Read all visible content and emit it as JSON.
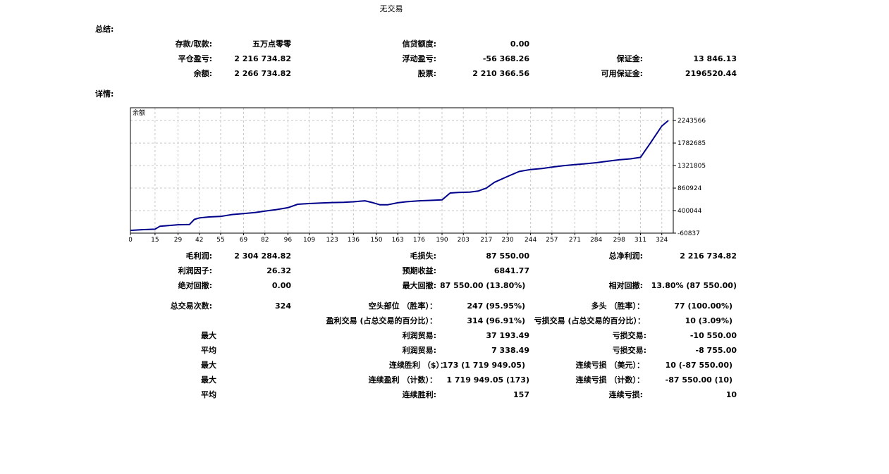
{
  "report": {
    "title": "无交易",
    "summary_label": "总结:",
    "details_label": "详情:"
  },
  "summary": {
    "deposit_label": "存款/取款:",
    "deposit_value": "五万点零零",
    "credit_label": "信贷额度:",
    "credit_value": "0.00",
    "closed_pl_label": "平仓盈亏:",
    "closed_pl_value": "2 216 734.82",
    "floating_pl_label": "浮动盈亏:",
    "floating_pl_value": "-56 368.26",
    "margin_label": "保证金:",
    "margin_value": "13 846.13",
    "balance_label": "余额:",
    "balance_value": "2 266 734.82",
    "equity_label": "股票:",
    "equity_value": "2 210 366.56",
    "free_margin_label": "可用保证金:",
    "free_margin_value": "2196520.44"
  },
  "chart_data": {
    "type": "line",
    "series": [
      {
        "name": "余额",
        "x": [
          0,
          7,
          15,
          18,
          29,
          36,
          39,
          42,
          48,
          55,
          62,
          69,
          76,
          82,
          89,
          96,
          102,
          109,
          116,
          123,
          130,
          136,
          143,
          148,
          152,
          157,
          163,
          168,
          176,
          183,
          190,
          195,
          200,
          207,
          212,
          217,
          222,
          230,
          237,
          244,
          251,
          257,
          264,
          271,
          278,
          284,
          291,
          298,
          305,
          311,
          317,
          324,
          328
        ],
        "y": [
          -5000,
          10000,
          20000,
          80000,
          110000,
          115000,
          220000,
          250000,
          270000,
          280000,
          320000,
          340000,
          360000,
          390000,
          420000,
          460000,
          530000,
          545000,
          555000,
          565000,
          570000,
          580000,
          600000,
          560000,
          520000,
          520000,
          560000,
          580000,
          600000,
          610000,
          620000,
          760000,
          770000,
          780000,
          800000,
          860000,
          980000,
          1100000,
          1200000,
          1240000,
          1260000,
          1290000,
          1320000,
          1340000,
          1360000,
          1380000,
          1410000,
          1440000,
          1460000,
          1490000,
          1780000,
          2130000,
          2243566
        ]
      }
    ],
    "ylim": [
      -60837,
      2504403
    ],
    "xlim": [
      0,
      331
    ],
    "y_ticks": [
      -60837,
      400044,
      860924,
      1321805,
      1782685,
      2243566
    ],
    "x_ticks": [
      0,
      15,
      29,
      42,
      55,
      69,
      82,
      96,
      109,
      123,
      136,
      150,
      163,
      176,
      190,
      203,
      217,
      230,
      244,
      257,
      271,
      284,
      298,
      311,
      324
    ],
    "grid": true,
    "legend": "top-left",
    "line_color": "#00008b",
    "grid_color": "#c8c8c8"
  },
  "details": {
    "gross_profit_label": "毛利润:",
    "gross_profit_value": "2 304 284.82",
    "gross_loss_label": "毛损失:",
    "gross_loss_value": "87 550.00",
    "net_profit_label": "总净利润:",
    "net_profit_value": "2 216 734.82",
    "profit_factor_label": "利润因子:",
    "profit_factor_value": "26.32",
    "expected_payoff_label": "预期收益:",
    "expected_payoff_value": "6841.77",
    "abs_dd_label": "绝对回撤:",
    "abs_dd_value": "0.00",
    "max_dd_label": "最大回撤:",
    "max_dd_value": "87 550.00  (13.80%)",
    "rel_dd_label": "相对回撤:",
    "rel_dd_value": "13.80% (87 550.00)",
    "total_trades_label": "总交易次数:",
    "total_trades_value": "324",
    "short_label": "空头部位 （胜率）：",
    "short_value": "247  (95.95%)",
    "long_label": "多头 （胜率）：",
    "long_value": "77  (100.00%)",
    "profit_trades_label": "盈利交易 (占总交易的百分比）：",
    "profit_trades_value": "314  (96.91%)",
    "loss_trades_label": "亏损交易 (占总交易的百分比）：",
    "loss_trades_value": "10  (3.09%)",
    "largest_label": "最大",
    "largest_profit_label": "利润贸易:",
    "largest_profit_value": "37 193.49",
    "largest_loss_label": "亏损交易:",
    "largest_loss_value": "-10 550.00",
    "average_label": "平均",
    "avg_profit_label": "利润贸易:",
    "avg_profit_value": "7 338.49",
    "avg_loss_label": "亏损交易:",
    "avg_loss_value": "-8 755.00",
    "max_label": "最大",
    "consec_wins_label": "连续胜利 （$）：",
    "consec_wins_value": "173  (1 719 949.05)",
    "consec_losses_label": "连续亏损 （美元）：",
    "consec_losses_value": "10  (-87 550.00)",
    "max2_label": "最大",
    "consec_profit_label": "连续盈利 （计数）：",
    "consec_profit_value": "1 719 949.05 (173)",
    "consec_loss_label": "连续亏损 （计数）：",
    "consec_loss_value": "-87 550.00  (10)",
    "average2_label": "平均",
    "avg_consec_wins_label": "连续胜利:",
    "avg_consec_wins_value": "157",
    "avg_consec_losses_label": "连续亏损:",
    "avg_consec_losses_value": "10"
  }
}
